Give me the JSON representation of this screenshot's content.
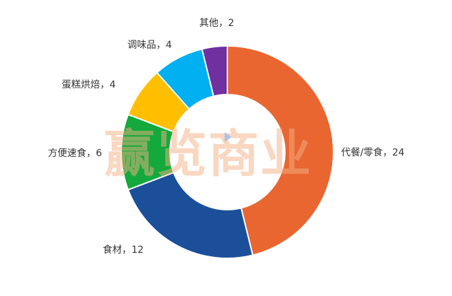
{
  "chart_data": {
    "type": "pie",
    "donut": true,
    "start_angle_deg": 0,
    "direction": "clockwise",
    "title": "",
    "slices": [
      {
        "name": "代餐/零食",
        "value": 24,
        "label": "代餐/零食，24",
        "color": "#E96631"
      },
      {
        "name": "食材",
        "value": 12,
        "label": "食材，12",
        "color": "#1B4F99"
      },
      {
        "name": "方便速食",
        "value": 6,
        "label": "方便速食，6",
        "color": "#13A93D"
      },
      {
        "name": "蛋糕烘焙",
        "value": 4,
        "label": "蛋糕烘焙，4",
        "color": "#FFBF00"
      },
      {
        "name": "调味品",
        "value": 4,
        "label": "调味品，4",
        "color": "#00B0F0"
      },
      {
        "name": "其他",
        "value": 2,
        "label": "其他，2",
        "color": "#7030A0"
      }
    ]
  },
  "watermark": {
    "text": "赢览商业"
  }
}
